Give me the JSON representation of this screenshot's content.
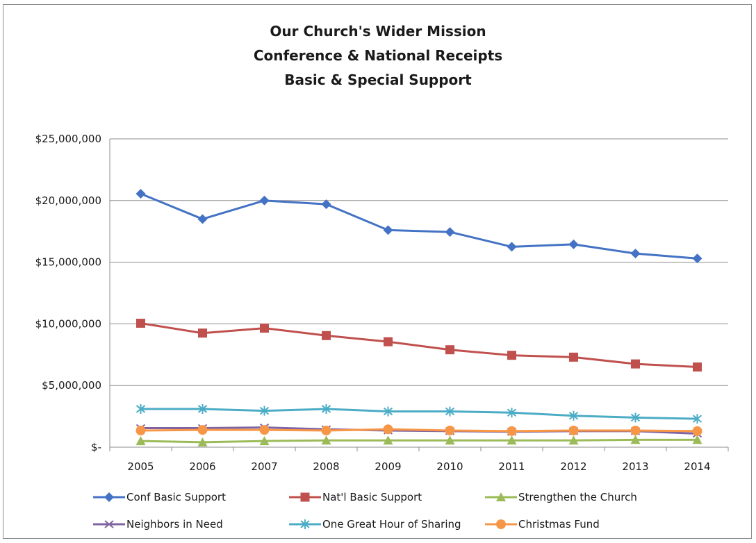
{
  "chart_data": {
    "type": "line",
    "title": [
      "Our Church's Wider Mission",
      "Conference & National Receipts",
      "Basic & Special Support"
    ],
    "xlabel": "",
    "ylabel": "",
    "x": [
      "2005",
      "2006",
      "2007",
      "2008",
      "2009",
      "2010",
      "2011",
      "2012",
      "2013",
      "2014"
    ],
    "ylim": [
      0,
      25000000
    ],
    "yticks": [
      0,
      5000000,
      10000000,
      15000000,
      20000000,
      25000000
    ],
    "ytick_labels": [
      "$-",
      "$5,000,000",
      "$10,000,000",
      "$15,000,000",
      "$20,000,000",
      "$25,000,000"
    ],
    "grid": "horizontal",
    "legend_position": "bottom",
    "series": [
      {
        "name": "Conf Basic Support",
        "color": "#4472C4",
        "marker": "diamond",
        "values": [
          20550000,
          18500000,
          20000000,
          19700000,
          17600000,
          17450000,
          16250000,
          16450000,
          15700000,
          15300000
        ]
      },
      {
        "name": "Nat'l Basic Support",
        "color": "#C0504D",
        "marker": "square",
        "values": [
          10050000,
          9250000,
          9650000,
          9050000,
          8550000,
          7900000,
          7450000,
          7300000,
          6750000,
          6500000
        ]
      },
      {
        "name": "Strengthen the Church",
        "color": "#9BBB59",
        "marker": "triangle",
        "values": [
          500000,
          400000,
          500000,
          550000,
          550000,
          550000,
          550000,
          550000,
          600000,
          600000
        ]
      },
      {
        "name": "Neighbors in Need",
        "color": "#8064A2",
        "marker": "x",
        "values": [
          1550000,
          1550000,
          1600000,
          1450000,
          1350000,
          1300000,
          1250000,
          1300000,
          1300000,
          1100000
        ]
      },
      {
        "name": "One Great Hour of Sharing",
        "color": "#4BACC6",
        "marker": "asterisk",
        "values": [
          3100000,
          3100000,
          2950000,
          3100000,
          2900000,
          2900000,
          2800000,
          2550000,
          2400000,
          2300000
        ]
      },
      {
        "name": "Christmas Fund",
        "color": "#F79646",
        "marker": "circle",
        "values": [
          1350000,
          1400000,
          1400000,
          1350000,
          1450000,
          1350000,
          1300000,
          1350000,
          1350000,
          1300000
        ]
      }
    ]
  }
}
